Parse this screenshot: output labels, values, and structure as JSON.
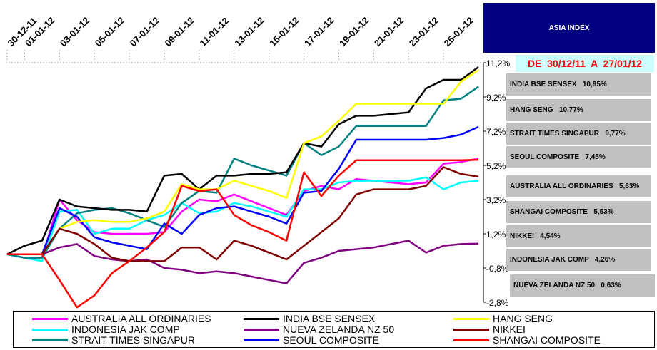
{
  "header": {
    "title": "ASIA INDEX",
    "date_range": "DE  30/12/11  A  27/01/12"
  },
  "ranking": [
    {
      "label": "INDIA BSE SENSEX   10,95%"
    },
    {
      "label": "HANG SENG   10,77%"
    },
    {
      "label": "STRAIT TIMES SINGAPUR   9,77%"
    },
    {
      "label": "SEOUL COMPOSITE   7,45%"
    },
    {
      "label": "AUSTRALIA ALL ORDINARIES   5,63%"
    },
    {
      "label": "SHANGAI COMPOSITE   5,53%"
    },
    {
      "label": "NIKKEI   4,54%"
    },
    {
      "label": "INDONESIA JAK COMP   4,26%"
    },
    {
      "label": "NUEVA ZELANDA NZ 50   0,63%"
    }
  ],
  "chart_data": {
    "type": "line",
    "ylim": [
      -2.8,
      11.2
    ],
    "y_ticks": [
      "11,2%",
      "9,2%",
      "7,2%",
      "5,2%",
      "3,2%",
      "1,2%",
      "-0,8%",
      "-2,8%"
    ],
    "x_ticks": [
      "30-12-11",
      "01-01-12",
      "03-01-12",
      "05-01-12",
      "07-01-12",
      "09-01-12",
      "11-01-12",
      "13-01-12",
      "15-01-12",
      "17-01-12",
      "19-01-12",
      "21-01-12",
      "23-01-12",
      "25-01-12"
    ],
    "x": [
      "30-12-11",
      "01-01-12",
      "02-01-12",
      "03-01-12",
      "04-01-12",
      "05-01-12",
      "06-01-12",
      "07-01-12",
      "08-01-12",
      "09-01-12",
      "10-01-12",
      "11-01-12",
      "12-01-12",
      "13-01-12",
      "14-01-12",
      "15-01-12",
      "16-01-12",
      "17-01-12",
      "18-01-12",
      "19-01-12",
      "20-01-12",
      "21-01-12",
      "22-01-12",
      "23-01-12",
      "24-01-12",
      "25-01-12",
      "26-01-12",
      "27-01-12"
    ],
    "series": [
      {
        "name": "AUSTRALIA ALL ORDINARIES",
        "color": "#ff00ff",
        "values": [
          0,
          -0.2,
          -0.2,
          3.2,
          2.0,
          1.3,
          1.2,
          1.2,
          1.2,
          1.3,
          2.5,
          3.2,
          3.1,
          3.5,
          3.1,
          2.7,
          2.3,
          3.7,
          4.0,
          3.8,
          4.4,
          4.3,
          4.2,
          4.1,
          4.2,
          5.3,
          5.4,
          5.6
        ]
      },
      {
        "name": "INDONESIA JAK COMP",
        "color": "#00ffff",
        "values": [
          0,
          -0.2,
          -0.4,
          2.5,
          2.6,
          1.2,
          1.5,
          1.5,
          2.0,
          2.3,
          3.0,
          2.4,
          2.5,
          3.0,
          2.8,
          2.5,
          2.2,
          3.8,
          3.8,
          4.2,
          4.3,
          4.3,
          4.3,
          4.3,
          4.5,
          3.8,
          4.2,
          4.3
        ]
      },
      {
        "name": "STRAIT TIMES SINGAPUR",
        "color": "#008080",
        "values": [
          0,
          -0.2,
          -0.2,
          1.5,
          2.4,
          2.6,
          2.7,
          2.4,
          2.0,
          1.6,
          3.0,
          3.7,
          3.6,
          5.6,
          5.2,
          4.9,
          4.6,
          6.5,
          5.8,
          6.3,
          7.5,
          7.5,
          7.5,
          7.5,
          7.5,
          9.0,
          9.1,
          9.8
        ]
      },
      {
        "name": "INDIA BSE SENSEX",
        "color": "#000000",
        "values": [
          0,
          0.5,
          0.8,
          3.2,
          2.8,
          2.7,
          2.6,
          2.6,
          2.5,
          4.6,
          4.7,
          3.8,
          4.6,
          4.6,
          4.7,
          4.7,
          4.8,
          6.5,
          6.3,
          7.6,
          8.1,
          8.1,
          8.2,
          8.3,
          9.7,
          10.2,
          10.2,
          10.95
        ]
      },
      {
        "name": "NUEVA ZELANDA NZ 50",
        "color": "#800080",
        "values": [
          0,
          0,
          0,
          0.4,
          0.6,
          -0.1,
          -0.3,
          -0.4,
          -0.3,
          -0.8,
          -0.9,
          -1.1,
          -1.0,
          -1.1,
          -1.3,
          -1.5,
          -1.7,
          -0.5,
          -0.2,
          0.2,
          0.3,
          0.4,
          0.6,
          0.8,
          0.1,
          0.5,
          0.6,
          0.63
        ]
      },
      {
        "name": "SEOUL COMPOSITE",
        "color": "#0000ff",
        "values": [
          0,
          0,
          0,
          2.7,
          2.2,
          1.0,
          0.7,
          0.5,
          0.3,
          1.8,
          1.2,
          2.3,
          2.7,
          2.8,
          2.5,
          2.2,
          1.8,
          3.6,
          3.7,
          5.0,
          6.7,
          6.7,
          6.7,
          6.7,
          6.7,
          6.8,
          7.0,
          7.45
        ]
      },
      {
        "name": "HANG SENG",
        "color": "#ffff00",
        "values": [
          0,
          0,
          0,
          1.5,
          1.9,
          2.0,
          1.9,
          1.9,
          2.1,
          2.5,
          4.1,
          3.8,
          3.8,
          4.3,
          4.0,
          3.7,
          3.3,
          6.5,
          6.9,
          7.8,
          8.8,
          8.8,
          8.8,
          8.8,
          8.8,
          8.8,
          10.1,
          10.77
        ]
      },
      {
        "name": "NIKKEI",
        "color": "#800000",
        "values": [
          0,
          0,
          0,
          1.5,
          1.2,
          0.6,
          -0.2,
          -0.4,
          -0.4,
          -0.4,
          0.4,
          0.4,
          -0.3,
          0.8,
          0.5,
          0.1,
          -0.3,
          0.5,
          1.3,
          2.1,
          3.5,
          3.8,
          3.8,
          3.8,
          4.0,
          5.1,
          4.7,
          4.54
        ]
      },
      {
        "name": "SHANGAI COMPOSITE",
        "color": "#ff0000",
        "values": [
          0,
          0,
          0,
          -1.5,
          -3.1,
          -2.4,
          -1.1,
          -0.4,
          0.4,
          1.3,
          4.0,
          3.7,
          3.8,
          2.3,
          1.7,
          1.3,
          0.8,
          4.8,
          3.4,
          4.6,
          5.5,
          5.5,
          5.5,
          5.5,
          5.5,
          5.5,
          5.5,
          5.53
        ]
      }
    ]
  }
}
